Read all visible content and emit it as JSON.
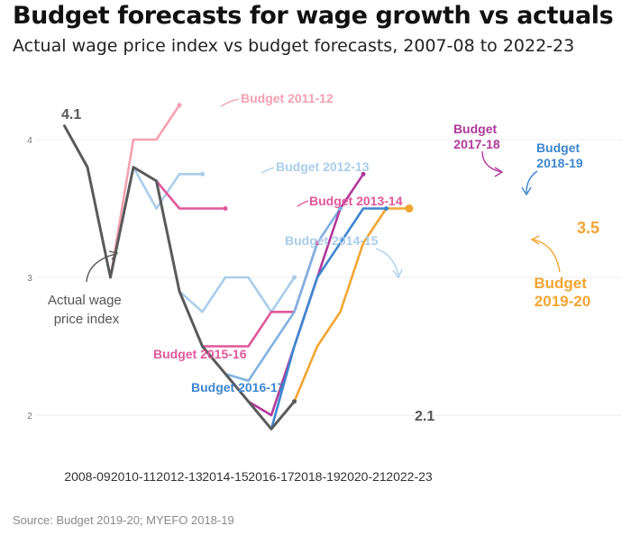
{
  "title": "Budget forecasts for wage growth vs actuals",
  "subtitle": "Actual wage price index vs budget forecasts, 2007-08 to 2022-23",
  "source": "Source: Budget 2019-20; MYEFO 2018-19",
  "chart_data": {
    "type": "line",
    "x": [
      "2007-08",
      "2008-09",
      "2009-10",
      "2010-11",
      "2011-12",
      "2012-13",
      "2013-14",
      "2014-15",
      "2015-16",
      "2016-17",
      "2017-18",
      "2018-19",
      "2019-20",
      "2020-21",
      "2021-22",
      "2022-23"
    ],
    "xticks": [
      "2008-09",
      "2010-11",
      "2012-13",
      "2014-15",
      "2016-17",
      "2018-19",
      "2020-21",
      "2022-23"
    ],
    "yticks": [
      "2",
      "3",
      "4"
    ],
    "ylim": [
      2,
      4
    ],
    "grid": true,
    "series": [
      {
        "name": "Budget 2011-12",
        "color": "#f4a1b2",
        "points": [
          [
            "2009-10",
            3.0
          ],
          [
            "2010-11",
            4.0
          ],
          [
            "2011-12",
            4.0
          ],
          [
            "2012-13",
            4.25
          ]
        ]
      },
      {
        "name": "Budget 2012-13",
        "color": "#a9cdea",
        "points": [
          [
            "2010-11",
            3.8
          ],
          [
            "2011-12",
            3.5
          ],
          [
            "2012-13",
            3.75
          ],
          [
            "2013-14",
            3.75
          ]
        ]
      },
      {
        "name": "Budget 2013-14",
        "color": "#e0579a",
        "points": [
          [
            "2011-12",
            3.7
          ],
          [
            "2012-13",
            3.5
          ],
          [
            "2013-14",
            3.5
          ],
          [
            "2014-15",
            3.5
          ]
        ]
      },
      {
        "name": "Budget 2014-15",
        "color": "#a9cdea",
        "points": [
          [
            "2012-13",
            2.9
          ],
          [
            "2013-14",
            2.75
          ],
          [
            "2014-15",
            3.0
          ],
          [
            "2015-16",
            3.0
          ],
          [
            "2016-17",
            2.75
          ],
          [
            "2017-18",
            3.0
          ]
        ]
      },
      {
        "name": "Budget 2015-16",
        "color": "#e0579a",
        "points": [
          [
            "2013-14",
            2.5
          ],
          [
            "2014-15",
            2.5
          ],
          [
            "2015-16",
            2.5
          ],
          [
            "2016-17",
            2.75
          ],
          [
            "2017-18",
            2.75
          ],
          [
            "2018-19",
            3.25
          ]
        ]
      },
      {
        "name": "Budget 2016-17",
        "color": "#7fb2e0",
        "points": [
          [
            "2014-15",
            2.3
          ],
          [
            "2015-16",
            2.25
          ],
          [
            "2016-17",
            2.5
          ],
          [
            "2017-18",
            2.75
          ],
          [
            "2018-19",
            3.25
          ],
          [
            "2019-20",
            3.5
          ]
        ]
      },
      {
        "name": "Budget 2017-18",
        "color": "#b0399b",
        "points": [
          [
            "2015-16",
            2.1
          ],
          [
            "2016-17",
            2.0
          ],
          [
            "2017-18",
            2.5
          ],
          [
            "2018-19",
            3.0
          ],
          [
            "2019-20",
            3.5
          ],
          [
            "2020-21",
            3.75
          ]
        ]
      },
      {
        "name": "Budget 2018-19",
        "color": "#3d86cf",
        "points": [
          [
            "2016-17",
            1.9
          ],
          [
            "2017-18",
            2.5
          ],
          [
            "2018-19",
            3.0
          ],
          [
            "2019-20",
            3.25
          ],
          [
            "2020-21",
            3.5
          ],
          [
            "2021-22",
            3.5
          ]
        ]
      },
      {
        "name": "Budget 2019-20",
        "color": "#f2a531",
        "points": [
          [
            "2017-18",
            2.1
          ],
          [
            "2018-19",
            2.5
          ],
          [
            "2019-20",
            2.75
          ],
          [
            "2020-21",
            3.25
          ],
          [
            "2021-22",
            3.5
          ],
          [
            "2022-23",
            3.5
          ]
        ]
      },
      {
        "name": "Actual wage price index",
        "color": "#5a5a5a",
        "points": [
          [
            "2007-08",
            4.1
          ],
          [
            "2008-09",
            3.8
          ],
          [
            "2009-10",
            3.0
          ],
          [
            "2010-11",
            3.8
          ],
          [
            "2011-12",
            3.7
          ],
          [
            "2012-13",
            2.9
          ],
          [
            "2013-14",
            2.5
          ],
          [
            "2014-15",
            2.3
          ],
          [
            "2015-16",
            2.1
          ],
          [
            "2016-17",
            1.9
          ],
          [
            "2017-18",
            2.1
          ]
        ]
      }
    ],
    "annotations": {
      "actual_start": "4.1",
      "actual_end": "2.1",
      "forecast_end": "3.5",
      "label_2011": "Budget 2011-12",
      "label_2012": "Budget 2012-13",
      "label_2013": "Budget 2013-14",
      "label_2014": "Budget 2014-15",
      "label_2015": "Budget 2015-16",
      "label_2016": "Budget 2016-17",
      "label_2017": [
        "Budget",
        "2017-18"
      ],
      "label_2018": [
        "Budget",
        "2018-19"
      ],
      "label_2019": [
        "Budget",
        "2019-20"
      ],
      "label_actual": [
        "Actual wage",
        "price index"
      ]
    }
  }
}
